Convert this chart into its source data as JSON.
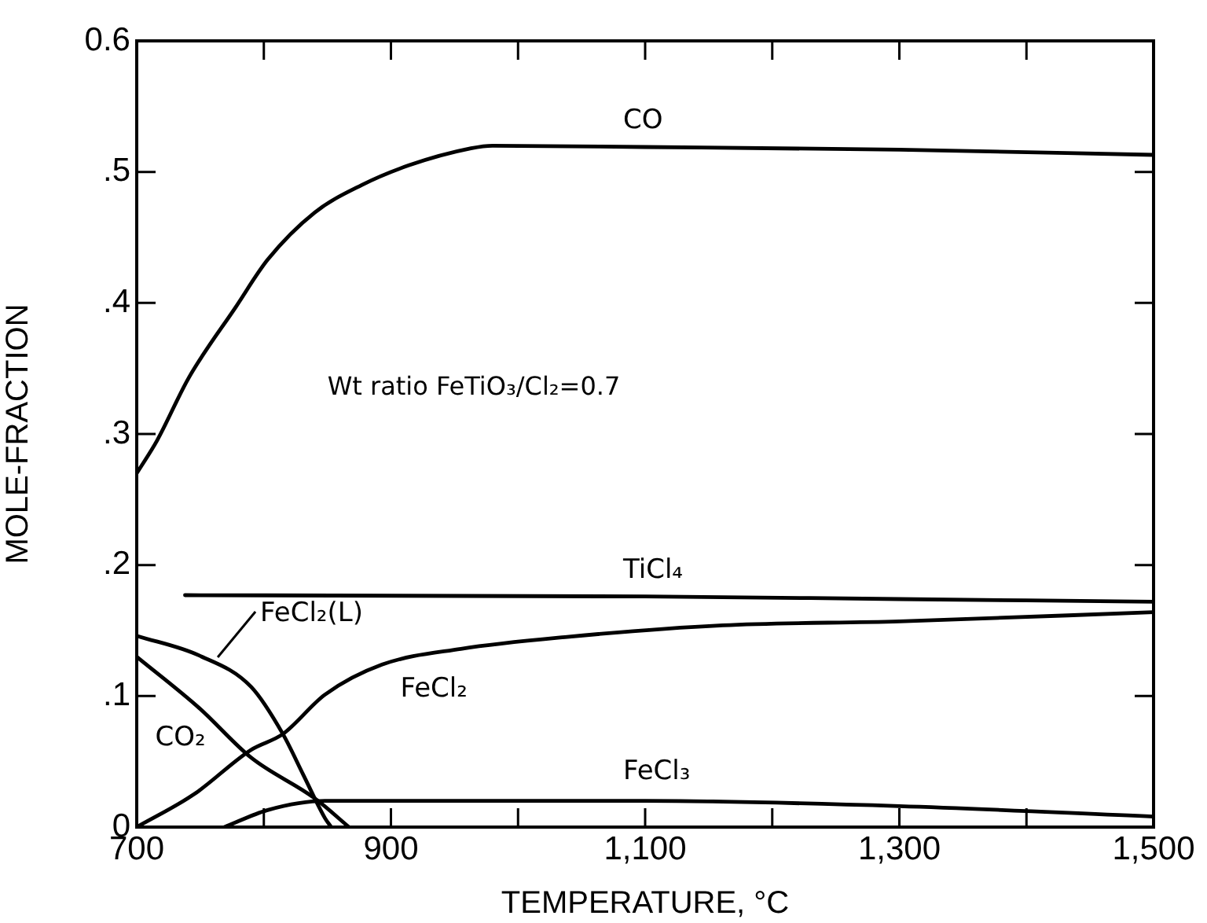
{
  "chart_data": {
    "type": "line",
    "xlabel": "TEMPERATURE, °C",
    "ylabel": "MOLE-FRACTION",
    "annotations": [
      "Wt ratio FeTiO₃/Cl₂=0.7"
    ],
    "xlim": [
      700,
      1500
    ],
    "xticks": [
      700,
      {
        "value": 800,
        "label": null
      },
      900,
      {
        "value": 1000,
        "label": null
      },
      {
        "value": 1100,
        "label": "1,100"
      },
      {
        "value": 1200,
        "label": null
      },
      {
        "value": 1300,
        "label": "1,300"
      },
      {
        "value": 1400,
        "label": null
      },
      {
        "value": 1500,
        "label": "1,500"
      }
    ],
    "ylim": [
      0,
      0.6
    ],
    "yticks": [
      0,
      {
        "value": 0.1,
        "label": ".1"
      },
      {
        "value": 0.2,
        "label": ".2"
      },
      {
        "value": 0.3,
        "label": ".3"
      },
      {
        "value": 0.4,
        "label": ".4"
      },
      {
        "value": 0.5,
        "label": ".5"
      },
      0.6
    ],
    "grid": false,
    "legend": false,
    "marker": "none",
    "line_style": "solid",
    "series": [
      {
        "name": "CO",
        "color": "#000000",
        "x": [
          700,
          716,
          741,
          778,
          803,
          840,
          877,
          914,
          963,
          980,
          1100,
          1300,
          1500
        ],
        "values": [
          0.27,
          0.295,
          0.343,
          0.397,
          0.433,
          0.469,
          0.49,
          0.505,
          0.518,
          0.52,
          0.519,
          0.517,
          0.513
        ]
      },
      {
        "name": "TiCl₄",
        "color": "#000000",
        "x": [
          738,
          1100,
          1300,
          1500
        ],
        "values": [
          0.177,
          0.176,
          0.174,
          0.172
        ]
      },
      {
        "name": "FeCl₂",
        "color": "#000000",
        "x": [
          700,
          745,
          790,
          815,
          848,
          893,
          955,
          1037,
          1161,
          1300,
          1500
        ],
        "values": [
          0,
          0.025,
          0.059,
          0.071,
          0.101,
          0.124,
          0.136,
          0.145,
          0.154,
          0.157,
          0.164
        ]
      },
      {
        "name": "FeCl₂(L)",
        "color": "#000000",
        "x": [
          700,
          749,
          790,
          815,
          831,
          848,
          853
        ],
        "values": [
          0.146,
          0.131,
          0.107,
          0.071,
          0.04,
          0.007,
          0
        ]
      },
      {
        "name": "CO₂",
        "color": "#000000",
        "x": [
          700,
          749,
          790,
          840,
          867
        ],
        "values": [
          0.13,
          0.091,
          0.053,
          0.022,
          0
        ]
      },
      {
        "name": "FeCl₃",
        "color": "#000000",
        "x": [
          769,
          803,
          848,
          1100,
          1300,
          1500
        ],
        "values": [
          0,
          0.013,
          0.02,
          0.02,
          0.016,
          0.008
        ]
      }
    ]
  }
}
